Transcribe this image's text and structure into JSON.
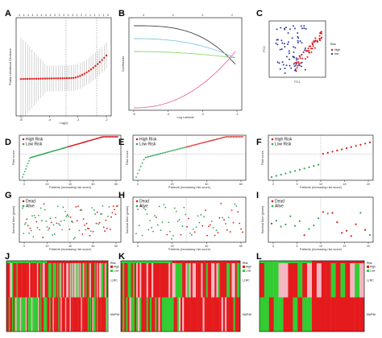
{
  "panel_labels": [
    "A",
    "B",
    "C",
    "D",
    "E",
    "F",
    "G",
    "H",
    "I",
    "J",
    "K",
    "L"
  ],
  "colors": {
    "high_risk": "#d7191c",
    "low_risk": "#31a354",
    "dead": "#d7191c",
    "alive": "#31a354",
    "heat_high": "#e41a1c",
    "heat_low": "#33cc33",
    "heat_mid": "#f4b6c2",
    "mean_line": "#cc2222"
  },
  "chart_data": [
    {
      "id": "A",
      "type": "scatter",
      "xlabel": "Log(λ)",
      "ylabel": "Partial Likelihood Deviance",
      "top_ticks": [
        "4",
        "4",
        "4",
        "4",
        "4",
        "4",
        "4",
        "4",
        "4",
        "3",
        "3",
        "3",
        "3",
        "2",
        "2",
        "2",
        "1",
        "1",
        "1",
        "1",
        "0"
      ],
      "x_ticks": [
        "-5",
        "-4",
        "-3",
        "-2"
      ],
      "grid": false
    },
    {
      "id": "B",
      "type": "line",
      "xlabel": "Log Lambda",
      "ylabel": "Coefficients",
      "top_ticks": [
        "4",
        "4",
        "3",
        "2"
      ],
      "x_ticks": [
        "-5",
        "-4",
        "-3",
        "-2"
      ],
      "series_colors": [
        "#444444",
        "#7ec8e3",
        "#8bd96b",
        "#e86aa6"
      ]
    },
    {
      "id": "C",
      "type": "scatter",
      "xlabel": "PC1",
      "ylabel": "PC2",
      "legend_title": "Risk",
      "legend": [
        "High",
        "low"
      ],
      "legend_position": "right"
    },
    {
      "id": "D",
      "type": "scatter",
      "xlabel": "Patients (increasing risk score)",
      "ylabel": "Risk score",
      "legend": [
        "High Risk",
        "Low Risk"
      ],
      "x_ticks": [
        "0",
        "20",
        "40",
        "60",
        "80"
      ]
    },
    {
      "id": "E",
      "type": "scatter",
      "xlabel": "Patients (increasing risk score)",
      "ylabel": "Risk score",
      "legend": [
        "High Risk",
        "Low Risk"
      ],
      "x_ticks": [
        "0",
        "20",
        "40",
        "60"
      ]
    },
    {
      "id": "F",
      "type": "scatter",
      "xlabel": "Patients (increasing risk score)",
      "ylabel": "Risk score",
      "legend": [
        "High Risk",
        "Low Risk"
      ],
      "x_ticks": [
        "0",
        "5",
        "10",
        "15",
        "20"
      ]
    },
    {
      "id": "G",
      "type": "scatter",
      "xlabel": "Patients (increasing risk score)",
      "ylabel": "Survival time (years)",
      "legend": [
        "Dead",
        "Alive"
      ],
      "x_ticks": [
        "0",
        "20",
        "40",
        "60",
        "80"
      ]
    },
    {
      "id": "H",
      "type": "scatter",
      "xlabel": "Patients (increasing risk score)",
      "ylabel": "Survival time (years)",
      "legend": [
        "Dead",
        "Alive"
      ],
      "x_ticks": [
        "0",
        "20",
        "40",
        "60"
      ]
    },
    {
      "id": "I",
      "type": "scatter",
      "xlabel": "Patients (increasing risk score)",
      "ylabel": "Survival time (years)",
      "legend": [
        "Dead",
        "Alive"
      ],
      "x_ticks": [
        "0",
        "5",
        "10",
        "15",
        "20"
      ]
    },
    {
      "id": "J",
      "type": "heatmap",
      "row_labels": [
        "LLRC",
        "MAP4K"
      ],
      "legend": [
        "Risk",
        "High",
        "Low"
      ]
    },
    {
      "id": "K",
      "type": "heatmap",
      "row_labels": [
        "LLRC",
        "MAP4K"
      ],
      "legend": [
        "Risk",
        "High",
        "Low"
      ]
    },
    {
      "id": "L",
      "type": "heatmap",
      "row_labels": [
        "LLRC",
        "MAP4K"
      ],
      "legend": [
        "Risk",
        "High",
        "Low"
      ]
    }
  ]
}
